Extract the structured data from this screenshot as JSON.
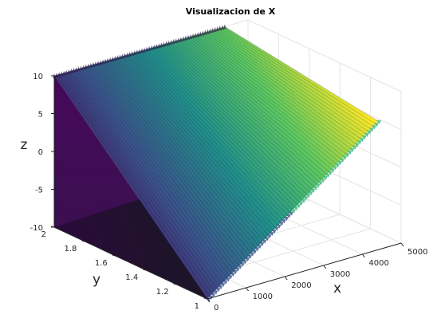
{
  "chart_data": {
    "type": "surface",
    "title": "Visualizacion de X",
    "xlabel": "x",
    "ylabel": "y",
    "zlabel": "z",
    "xlim": [
      0,
      5000
    ],
    "ylim": [
      1,
      2
    ],
    "zlim": [
      -10,
      10
    ],
    "x_ticks": [
      "0",
      "1000",
      "2000",
      "3000",
      "4000",
      "5000"
    ],
    "y_ticks": [
      "1",
      "1.2",
      "1.4",
      "1.6",
      "1.8",
      "2"
    ],
    "z_ticks": [
      "-10",
      "-5",
      "0",
      "5",
      "10"
    ],
    "grid": true,
    "colormap": "viridis",
    "description_of_data": [
      {
        "x": 0,
        "y": 1,
        "z": -10
      },
      {
        "x": 4400,
        "y": 1,
        "z": 7
      },
      {
        "x": 0,
        "y": 2,
        "z": 10
      },
      {
        "x": 4400,
        "y": 2,
        "z": 10
      }
    ]
  }
}
